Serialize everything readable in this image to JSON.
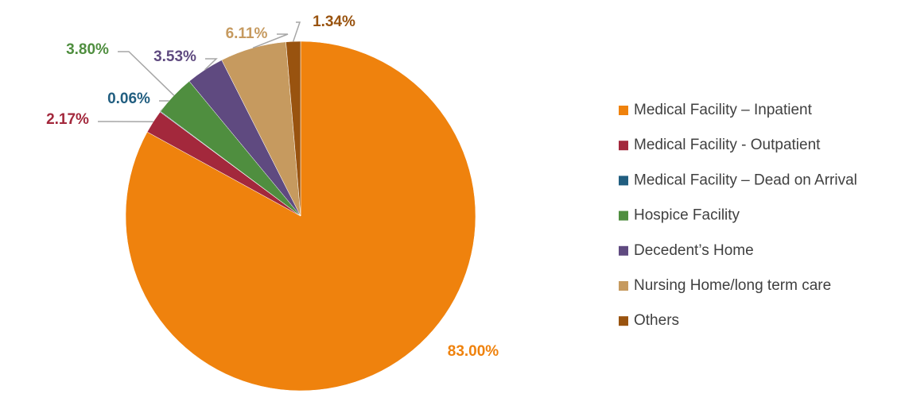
{
  "chart_data": {
    "type": "pie",
    "categories": [
      "Medical Facility – Inpatient",
      "Medical Facility - Outpatient",
      "Medical Facility – Dead on Arrival",
      "Hospice Facility",
      "Decedent’s Home",
      "Nursing Home/long term care",
      "Others"
    ],
    "values": [
      83.0,
      2.17,
      0.06,
      3.8,
      3.53,
      6.11,
      1.34
    ],
    "value_labels": [
      "83.00%",
      "2.17%",
      "0.06%",
      "3.80%",
      "3.53%",
      "6.11%",
      "1.34%"
    ],
    "colors": [
      "#ef820d",
      "#a3283c",
      "#215e80",
      "#4f8e3f",
      "#5f4a80",
      "#c69a5f",
      "#99530f"
    ],
    "legend": "right"
  }
}
